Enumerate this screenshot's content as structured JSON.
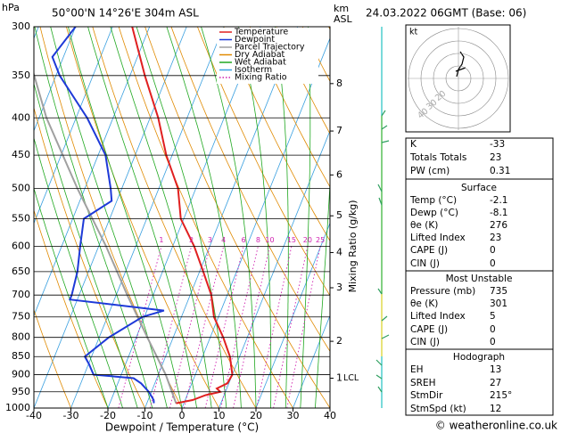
{
  "chart_data": {
    "type": "skewt",
    "title": "50°00'N 14°26'E 304m ASL",
    "y_unit": "hPa",
    "xlabel": "Dewpoint / Temperature (°C)",
    "y2label": "Mixing Ratio (g/kg)",
    "km_label": "km\nASL",
    "ylog": true,
    "ylim": [
      1000,
      300
    ],
    "yticks": [
      300,
      350,
      400,
      450,
      500,
      550,
      600,
      650,
      700,
      750,
      800,
      850,
      900,
      950,
      1000
    ],
    "xlim": [
      -40,
      40
    ],
    "xticks": [
      -40,
      -30,
      -20,
      -10,
      0,
      10,
      20,
      30,
      40
    ],
    "km_ticks": [
      {
        "value": 8,
        "pressure": 359
      },
      {
        "value": 7,
        "pressure": 417
      },
      {
        "value": 6,
        "pressure": 479
      },
      {
        "value": 5,
        "pressure": 545
      },
      {
        "value": 4,
        "pressure": 612
      },
      {
        "value": 3,
        "pressure": 684
      },
      {
        "value": 2,
        "pressure": 810
      },
      {
        "value": 1,
        "pressure": 910
      }
    ],
    "lcl_label": "LCL",
    "mixing_ratios": [
      1,
      2,
      3,
      4,
      6,
      8,
      10,
      15,
      20,
      25
    ],
    "series": [
      {
        "name": "Temperature",
        "color": "#e02020",
        "pressure": [
          985,
          975,
          960,
          950,
          940,
          925,
          900,
          850,
          800,
          750,
          700,
          650,
          600,
          550,
          500,
          450,
          400,
          350,
          300
        ],
        "values": [
          -2.1,
          2,
          5,
          8.6,
          7.3,
          9.6,
          10,
          7.4,
          3.5,
          -1.2,
          -4.3,
          -9,
          -14.2,
          -20.8,
          -24.8,
          -31.6,
          -37.8,
          -46,
          -54.7
        ]
      },
      {
        "name": "Dewpoint",
        "color": "#1e3ad8",
        "pressure": [
          985,
          975,
          950,
          925,
          910,
          900,
          870,
          850,
          800,
          750,
          735,
          710,
          700,
          650,
          600,
          550,
          520,
          500,
          450,
          400,
          350,
          330,
          300
        ],
        "values": [
          -8.1,
          -8.5,
          -10.7,
          -13.7,
          -16.3,
          -27.5,
          -29.9,
          -31.8,
          -27.4,
          -20.5,
          -15.4,
          -42,
          -42,
          -43,
          -45,
          -47,
          -41.4,
          -43,
          -48,
          -57,
          -69,
          -73,
          -70
        ]
      },
      {
        "name": "Parcel Trajectory",
        "color": "#a0a0a0",
        "pressure": [
          985,
          900,
          800,
          700,
          600,
          500,
          400,
          300
        ],
        "values": [
          -2.1,
          -8,
          -17,
          -27,
          -38,
          -52,
          -68,
          -85
        ]
      }
    ],
    "background_lines": [
      {
        "name": "Dry Adiabat",
        "color": "#e08a00"
      },
      {
        "name": "Wet Adiabat",
        "color": "#20a820"
      },
      {
        "name": "Isotherm",
        "color": "#3aa0e0"
      },
      {
        "name": "Mixing Ratio",
        "color": "#d020b0"
      }
    ]
  },
  "header": {
    "date": "24.03.2022 06GMT (Base: 06)"
  },
  "hodograph": {
    "unit": "kt",
    "ring_labels": [
      20,
      30,
      40
    ]
  },
  "table": {
    "rows": [
      [
        "K",
        -33
      ],
      [
        "Totals Totals",
        23
      ],
      [
        "PW (cm)",
        0.31
      ],
      [
        "Surface"
      ],
      [
        "Temp (°C)",
        -2.1
      ],
      [
        "Dewp (°C)",
        -8.1
      ],
      [
        "θe (K)",
        276
      ],
      [
        "Lifted Index",
        23
      ],
      [
        "CAPE (J)",
        0
      ],
      [
        "CIN (J)",
        0
      ],
      [
        "Most Unstable"
      ],
      [
        "Pressure (mb)",
        735
      ],
      [
        "θe (K)",
        301
      ],
      [
        "Lifted Index",
        5
      ],
      [
        "CAPE (J)",
        0
      ],
      [
        "CIN (J)",
        0
      ],
      [
        "Hodograph"
      ],
      [
        "EH",
        13
      ],
      [
        "SREH",
        27
      ],
      [
        "StmDir",
        "215°"
      ],
      [
        "StmSpd (kt)",
        12
      ]
    ]
  },
  "footer": "© weatheronline.co.uk"
}
